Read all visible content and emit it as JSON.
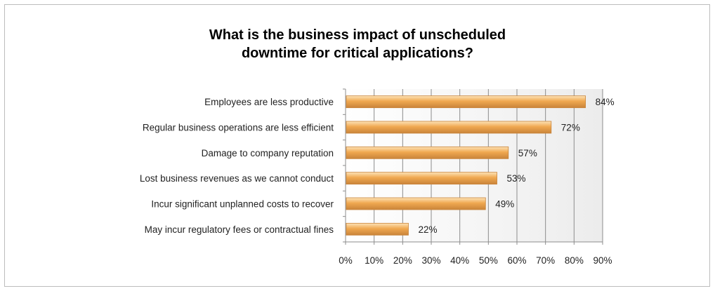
{
  "chart_data": {
    "type": "bar",
    "orientation": "horizontal",
    "title": "What is the business impact of unscheduled downtime for critical applications?",
    "title_lines": [
      "What is the business impact of unscheduled",
      "downtime for critical applications?"
    ],
    "categories": [
      "Employees are less productive",
      "Regular business operations  are less efficient",
      "Damage to company reputation",
      "Lost business revenues as we cannot conduct",
      "Incur significant unplanned costs to recover",
      "May incur regulatory fees or contractual fines"
    ],
    "values": [
      84,
      72,
      57,
      53,
      49,
      22
    ],
    "data_labels": [
      "84%",
      "72%",
      "57%",
      "53%",
      "49%",
      "22%"
    ],
    "xlim": [
      0,
      90
    ],
    "xticks": [
      "0%",
      "10%",
      "20%",
      "30%",
      "40%",
      "50%",
      "60%",
      "70%",
      "80%",
      "90%"
    ],
    "grid": true,
    "legend": "none",
    "bar_color": "#f0a850",
    "bar_highlight": "#fde3b8",
    "bar_edge": "#c9843a"
  }
}
